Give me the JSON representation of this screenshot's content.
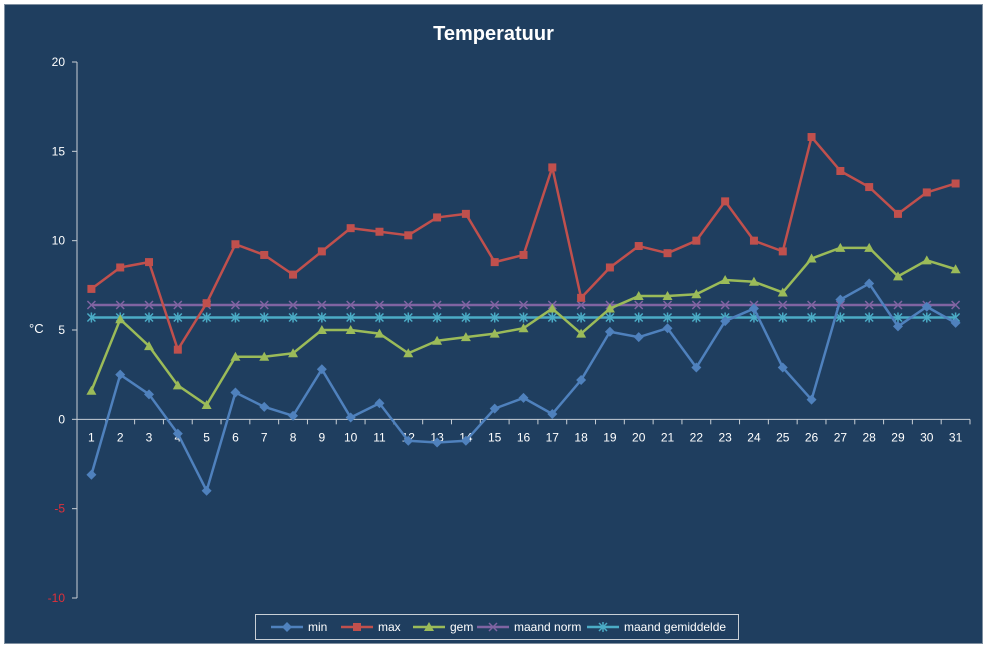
{
  "chart_data": {
    "type": "line",
    "title": "Temperatuur",
    "xlabel": "",
    "ylabel": "°C",
    "ylim": [
      -10,
      20
    ],
    "yticks": [
      -10,
      -5,
      0,
      5,
      10,
      15,
      20
    ],
    "grid": false,
    "legend_position": "bottom",
    "categories": [
      "1",
      "2",
      "3",
      "4",
      "5",
      "6",
      "7",
      "8",
      "9",
      "10",
      "11",
      "12",
      "13",
      "14",
      "15",
      "16",
      "17",
      "18",
      "19",
      "20",
      "21",
      "22",
      "23",
      "24",
      "25",
      "26",
      "27",
      "28",
      "29",
      "30",
      "31"
    ],
    "series": [
      {
        "name": "min",
        "color": "#4f81bd",
        "marker": "diamond",
        "values": [
          -3.1,
          2.5,
          1.4,
          -0.8,
          -4.0,
          1.5,
          0.7,
          0.2,
          2.8,
          0.1,
          0.9,
          -1.2,
          -1.3,
          -1.2,
          0.6,
          1.2,
          0.3,
          2.2,
          4.9,
          4.6,
          5.1,
          2.9,
          5.5,
          6.2,
          2.9,
          1.1,
          6.7,
          7.6,
          5.2,
          6.3,
          5.4
        ]
      },
      {
        "name": "max",
        "color": "#c0504d",
        "marker": "square",
        "values": [
          7.3,
          8.5,
          8.8,
          3.9,
          6.5,
          9.8,
          9.2,
          8.1,
          9.4,
          10.7,
          10.5,
          10.3,
          11.3,
          11.5,
          8.8,
          9.2,
          14.1,
          6.8,
          8.5,
          9.7,
          9.3,
          10.0,
          12.2,
          10.0,
          9.4,
          15.8,
          13.9,
          13.0,
          11.5,
          12.7,
          13.2
        ]
      },
      {
        "name": "gem",
        "color": "#9bbb59",
        "marker": "triangle",
        "values": [
          1.6,
          5.6,
          4.1,
          1.9,
          0.8,
          3.5,
          3.5,
          3.7,
          5.0,
          5.0,
          4.8,
          3.7,
          4.4,
          4.6,
          4.8,
          5.1,
          6.2,
          4.8,
          6.2,
          6.9,
          6.9,
          7.0,
          7.8,
          7.7,
          7.1,
          9.0,
          9.6,
          9.6,
          8.0,
          8.9,
          8.4
        ]
      },
      {
        "name": "maand norm",
        "color": "#8064a2",
        "marker": "x",
        "values": [
          6.4,
          6.4,
          6.4,
          6.4,
          6.4,
          6.4,
          6.4,
          6.4,
          6.4,
          6.4,
          6.4,
          6.4,
          6.4,
          6.4,
          6.4,
          6.4,
          6.4,
          6.4,
          6.4,
          6.4,
          6.4,
          6.4,
          6.4,
          6.4,
          6.4,
          6.4,
          6.4,
          6.4,
          6.4,
          6.4,
          6.4
        ]
      },
      {
        "name": "maand gemiddelde",
        "color": "#4bacc6",
        "marker": "star",
        "values": [
          5.7,
          5.7,
          5.7,
          5.7,
          5.7,
          5.7,
          5.7,
          5.7,
          5.7,
          5.7,
          5.7,
          5.7,
          5.7,
          5.7,
          5.7,
          5.7,
          5.7,
          5.7,
          5.7,
          5.7,
          5.7,
          5.7,
          5.7,
          5.7,
          5.7,
          5.7,
          5.7,
          5.7,
          5.7,
          5.7,
          5.7
        ]
      }
    ]
  },
  "colors": {
    "background": "#1f3e5f",
    "axis": "#c8cfd6",
    "tick_text": "#ffffff",
    "negative_tick_text": "#e0303a"
  }
}
